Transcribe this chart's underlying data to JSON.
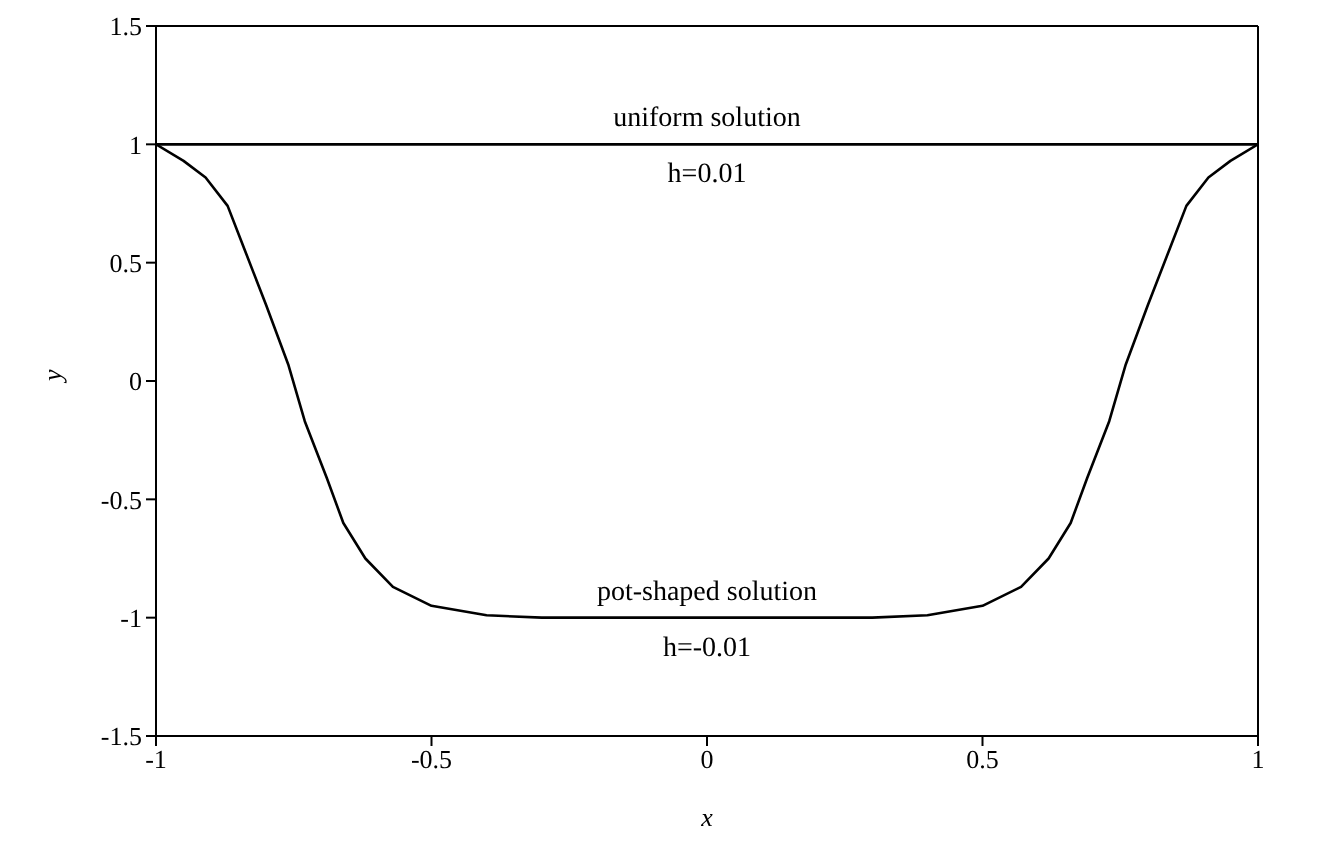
{
  "chart_data": {
    "type": "line",
    "xlabel": "x",
    "ylabel": "y",
    "series": [
      {
        "color": "#000000",
        "x": [
          -1,
          1
        ],
        "values": [
          1,
          1
        ]
      },
      {
        "color": "#000000",
        "x": [
          -1,
          -0.95,
          -0.91,
          -0.87,
          -0.84,
          -0.8,
          -0.76,
          -0.73,
          -0.69,
          -0.66,
          -0.62,
          -0.57,
          -0.5,
          -0.4,
          -0.3,
          -0.2,
          0,
          0.2,
          0.3,
          0.4,
          0.5,
          0.57,
          0.62,
          0.66,
          0.69,
          0.73,
          0.76,
          0.8,
          0.84,
          0.87,
          0.91,
          0.95,
          1
        ],
        "values": [
          1,
          0.93,
          0.86,
          0.74,
          0.56,
          0.32,
          0.07,
          -0.17,
          -0.41,
          -0.6,
          -0.75,
          -0.87,
          -0.95,
          -0.99,
          -1,
          -1,
          -1,
          -1,
          -1,
          -0.99,
          -0.95,
          -0.87,
          -0.75,
          -0.6,
          -0.41,
          -0.17,
          0.07,
          0.32,
          0.56,
          0.74,
          0.86,
          0.93,
          1
        ]
      }
    ],
    "annotations": [
      "uniform solution",
      "h=0.01",
      "pot-shaped solution",
      "h=-0.01"
    ],
    "xlim": [
      -1,
      1
    ],
    "xticks": [
      -1,
      -0.5,
      0,
      0.5,
      1
    ],
    "ylim": [
      -1.5,
      1.5
    ],
    "yticks": [
      -1.5,
      -1,
      -0.5,
      0,
      0.5,
      1,
      1.5
    ],
    "marker": "none",
    "line_style": "solid"
  }
}
